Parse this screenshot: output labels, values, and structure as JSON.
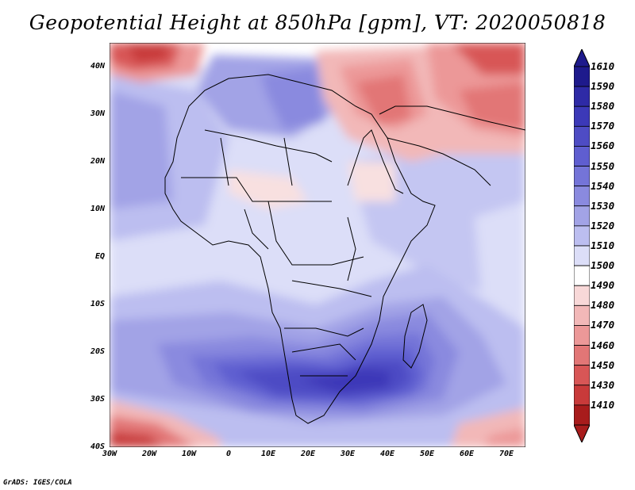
{
  "title": "Geopotential Height at 850hPa [gpm], VT: 2020050818",
  "credit": "GrADS: IGES/COLA",
  "lat_ticks": [
    "40N",
    "30N",
    "20N",
    "10N",
    "EQ",
    "10S",
    "20S",
    "30S",
    "40S"
  ],
  "lon_ticks": [
    "30W",
    "20W",
    "10W",
    "0",
    "10E",
    "20E",
    "30E",
    "40E",
    "50E",
    "60E",
    "70E"
  ],
  "colorbar": {
    "labels": [
      "1610",
      "1590",
      "1580",
      "1570",
      "1560",
      "1550",
      "1540",
      "1530",
      "1520",
      "1510",
      "1500",
      "1490",
      "1480",
      "1470",
      "1460",
      "1450",
      "1430",
      "1410"
    ],
    "colors": [
      "#1e1a8c",
      "#2e2aa6",
      "#3c39b8",
      "#4e4cc4",
      "#5f5ed0",
      "#7474d8",
      "#8a8adf",
      "#a2a3e6",
      "#bcbef0",
      "#dcdef8",
      "#ffffff",
      "#f8d8d8",
      "#f2b8b8",
      "#ec9898",
      "#e27676",
      "#d85656",
      "#c83a3a",
      "#a81c1c"
    ]
  }
}
